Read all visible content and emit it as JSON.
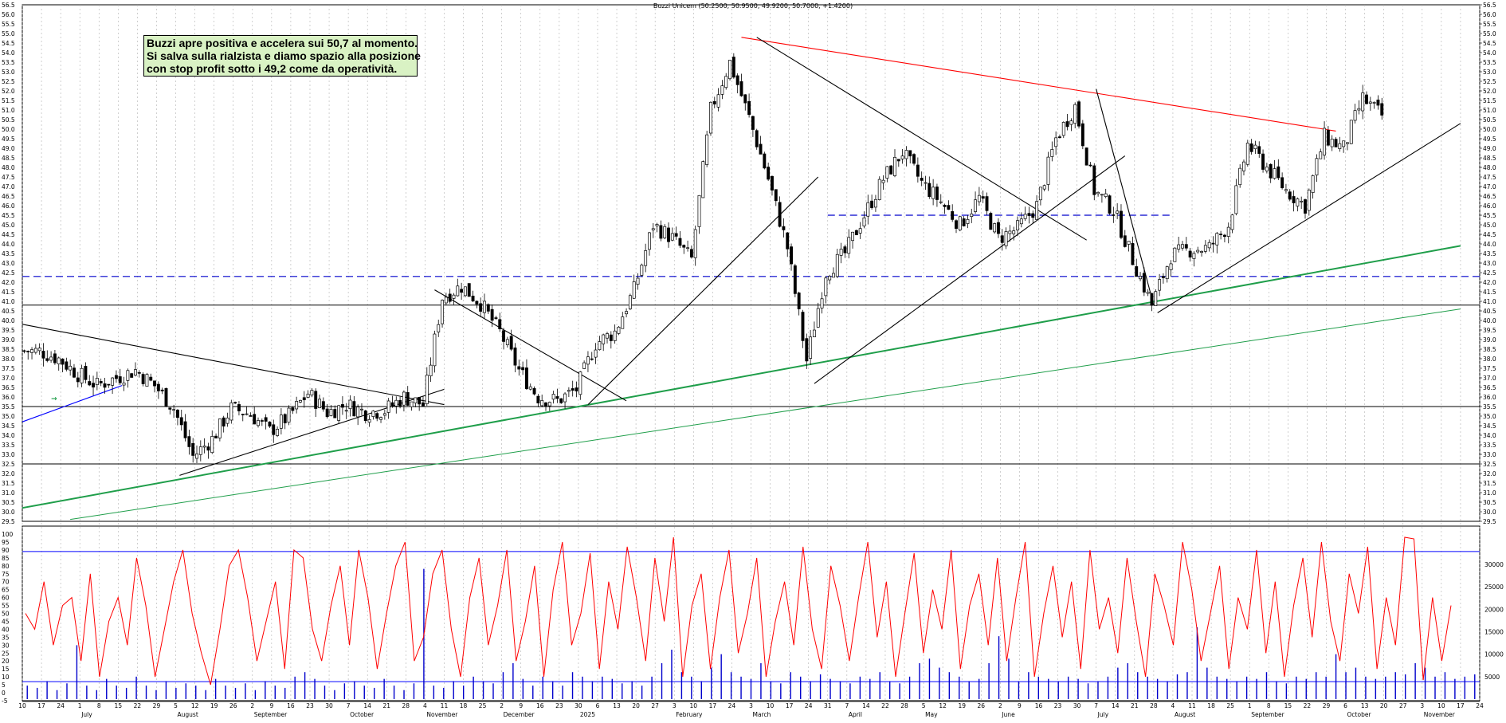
{
  "chart_title": "Buzzi Unicem (50.2500, 50.9500, 49.9200, 50.7000, +1.4200)",
  "annotation": {
    "lines": [
      "Buzzi apre positiva e accelera sui 50,7 al momento.",
      "Si salva sulla rialzista e diamo spazio alla posizione",
      "con stop profit sotto i 49,2 come da operatività."
    ]
  },
  "colors": {
    "candles": "#000000",
    "resistance": "#ff0000",
    "support_green": "#1f9e4a",
    "dashed_level": "#0000cc",
    "oscillator": "#ff0000",
    "volume": "#0000cc",
    "guide_blue": "#0000ff",
    "grid": "#b0b0b0"
  },
  "chart_data": [
    {
      "type": "candlestick",
      "title": "Buzzi Unicem (50.2500, 50.9500, 49.9200, 50.7000, +1.4200)",
      "ylim": [
        29.5,
        56.5
      ],
      "y_ticks": [
        "56.5",
        "56.0",
        "55.5",
        "55.0",
        "54.5",
        "54.0",
        "53.5",
        "53.0",
        "52.5",
        "52.0",
        "51.5",
        "51.0",
        "50.5",
        "50.0",
        "49.5",
        "49.0",
        "48.5",
        "48.0",
        "47.5",
        "47.0",
        "46.5",
        "46.0",
        "45.5",
        "45.0",
        "44.5",
        "44.0",
        "43.5",
        "43.0",
        "42.5",
        "42.0",
        "41.5",
        "41.0",
        "40.5",
        "40.0",
        "39.5",
        "39.0",
        "38.5",
        "38.0",
        "37.5",
        "37.0",
        "36.5",
        "36.0",
        "35.5",
        "35.0",
        "34.5",
        "34.0",
        "33.5",
        "33.0",
        "32.5",
        "32.0",
        "31.5",
        "31.0",
        "30.5",
        "30.0",
        "29.5"
      ],
      "x_day_labels": [
        "10",
        "17",
        "24",
        "1",
        "8",
        "15",
        "22",
        "29",
        "5",
        "12",
        "19",
        "26",
        "2",
        "9",
        "16",
        "23",
        "30",
        "7",
        "14",
        "21",
        "28",
        "4",
        "11",
        "18",
        "25",
        "2",
        "9",
        "16",
        "23",
        "30",
        "6",
        "13",
        "20",
        "27",
        "3",
        "10",
        "17",
        "24",
        "3",
        "10",
        "17",
        "24",
        "31",
        "7",
        "14",
        "22",
        "28",
        "5",
        "12",
        "19",
        "26",
        "2",
        "9",
        "16",
        "23",
        "30",
        "7",
        "14",
        "21",
        "28",
        "4",
        "11",
        "18",
        "25",
        "1",
        "8",
        "15",
        "22",
        "29",
        "6",
        "13",
        "20",
        "27",
        "3",
        "10",
        "17",
        "24"
      ],
      "x_month_labels": [
        {
          "label": "July",
          "week": 3
        },
        {
          "label": "August",
          "week": 8
        },
        {
          "label": "September",
          "week": 12
        },
        {
          "label": "October",
          "week": 17
        },
        {
          "label": "November",
          "week": 21
        },
        {
          "label": "December",
          "week": 25
        },
        {
          "label": "2025",
          "week": 29
        },
        {
          "label": "February",
          "week": 34
        },
        {
          "label": "March",
          "week": 38
        },
        {
          "label": "April",
          "week": 43
        },
        {
          "label": "May",
          "week": 47
        },
        {
          "label": "June",
          "week": 51
        },
        {
          "label": "July",
          "week": 56
        },
        {
          "label": "August",
          "week": 60
        },
        {
          "label": "September",
          "week": 64
        },
        {
          "label": "October",
          "week": 69
        },
        {
          "label": "November",
          "week": 73
        }
      ],
      "weekly_closes": [
        38.4,
        38.0,
        37.2,
        36.6,
        37.0,
        37.4,
        36.6,
        35.4,
        32.9,
        33.8,
        35.4,
        35.1,
        34.2,
        35.0,
        36.2,
        35.2,
        35.6,
        35.2,
        35.3,
        36.0,
        35.6,
        41.2,
        41.8,
        40.9,
        39.4,
        37.4,
        36.0,
        35.8,
        36.4,
        38.8,
        39.4,
        41.6,
        45.0,
        44.3,
        43.2,
        51.0,
        53.5,
        50.6,
        47.4,
        43.8,
        37.9,
        42.5,
        43.5,
        45.5,
        47.4,
        48.8,
        47.2,
        46.2,
        45.0,
        46.4,
        44.3,
        44.8,
        46.0,
        49.5,
        51.2,
        46.8,
        45.8,
        43.2,
        40.8,
        43.4,
        43.7,
        43.8,
        45.0,
        49.2,
        48.0,
        46.8,
        46.0,
        49.6,
        49.0,
        51.6,
        50.7
      ],
      "horizontal_levels": [
        {
          "value": 42.3,
          "style": "dashed",
          "color": "#0000cc"
        },
        {
          "value": 45.5,
          "style": "dashed",
          "color": "#0000cc",
          "from_week": 42,
          "to_week": 60
        },
        {
          "value": 40.8,
          "style": "solid",
          "color": "#000000"
        },
        {
          "value": 35.5,
          "style": "solid",
          "color": "#000000"
        },
        {
          "value": 32.5,
          "style": "solid",
          "color": "#000000"
        },
        {
          "value": 29.5,
          "style": "solid",
          "color": "#000000"
        }
      ],
      "trend_lines": [
        {
          "color": "#ff0000",
          "from": [
            37.5,
            54.8
          ],
          "to": [
            68.5,
            49.9
          ]
        },
        {
          "color": "#1f9e4a",
          "from": [
            0,
            30.2
          ],
          "to": [
            75,
            43.9
          ],
          "width": 2
        },
        {
          "color": "#1f9e4a",
          "from": [
            2.5,
            29.6
          ],
          "to": [
            75,
            40.6
          ],
          "width": 1
        },
        {
          "color": "#000000",
          "from": [
            0,
            39.8
          ],
          "to": [
            22,
            35.6
          ]
        },
        {
          "color": "#000000",
          "from": [
            8.2,
            31.9
          ],
          "to": [
            22,
            36.4
          ]
        },
        {
          "color": "#000000",
          "from": [
            21.5,
            41.6
          ],
          "to": [
            31.5,
            35.8
          ]
        },
        {
          "color": "#000000",
          "from": [
            29.5,
            35.6
          ],
          "to": [
            41.5,
            47.5
          ]
        },
        {
          "color": "#000000",
          "from": [
            38.3,
            54.8
          ],
          "to": [
            55.5,
            44.2
          ]
        },
        {
          "color": "#000000",
          "from": [
            41.3,
            36.7
          ],
          "to": [
            57.5,
            48.6
          ]
        },
        {
          "color": "#000000",
          "from": [
            56.0,
            52.1
          ],
          "to": [
            59.0,
            40.8
          ]
        },
        {
          "color": "#000000",
          "from": [
            59.2,
            40.4
          ],
          "to": [
            75,
            50.3
          ]
        },
        {
          "color": "#0000ff",
          "from": [
            0,
            34.7
          ],
          "to": [
            5.2,
            36.6
          ]
        }
      ]
    },
    {
      "type": "line",
      "name_hidden": true,
      "ylim": [
        -5,
        100
      ],
      "y_ticks_left": [
        "100",
        "95",
        "90",
        "85",
        "80",
        "75",
        "70",
        "65",
        "60",
        "55",
        "50",
        "45",
        "40",
        "35",
        "30",
        "25",
        "20",
        "15",
        "10",
        "5",
        "0",
        "-5"
      ],
      "reference_levels": [
        89,
        7
      ],
      "values": [
        50,
        40,
        70,
        30,
        55,
        60,
        20,
        75,
        10,
        45,
        60,
        30,
        85,
        55,
        10,
        40,
        70,
        90,
        50,
        25,
        5,
        40,
        80,
        90,
        60,
        20,
        45,
        70,
        15,
        90,
        85,
        40,
        20,
        55,
        80,
        30,
        90,
        60,
        15,
        50,
        80,
        95,
        20,
        35,
        75,
        90,
        40,
        10,
        60,
        85,
        30,
        55,
        90,
        20,
        45,
        80,
        10,
        65,
        95,
        30,
        50,
        88,
        15,
        70,
        40,
        92,
        60,
        20,
        85,
        45,
        98,
        10,
        55,
        75,
        15,
        60,
        90,
        25,
        50,
        85,
        10,
        45,
        70,
        30,
        92,
        40,
        15,
        80,
        55,
        20,
        60,
        95,
        35,
        70,
        10,
        50,
        88,
        25,
        65,
        40,
        90,
        15,
        55,
        75,
        30,
        85,
        20,
        60,
        95,
        10,
        50,
        80,
        35,
        70,
        15,
        90,
        40,
        60,
        25,
        85,
        45,
        10,
        75,
        55,
        30,
        95,
        65,
        20,
        50,
        80,
        15,
        60,
        40,
        90,
        25,
        70,
        10,
        55,
        85,
        35,
        95,
        45,
        20,
        75,
        50,
        92,
        15,
        60,
        30,
        98,
        97,
        8,
        60,
        20,
        55
      ]
    },
    {
      "type": "bar",
      "name_hidden": true,
      "ylim": [
        0,
        30000
      ],
      "y_ticks_right": [
        "30000",
        "25000",
        "20000",
        "15000",
        "10000",
        "5000"
      ],
      "values": [
        3000,
        2500,
        4000,
        2000,
        3500,
        12000,
        3000,
        2000,
        4500,
        3000,
        2500,
        5000,
        3000,
        2000,
        4000,
        2500,
        3500,
        3000,
        2000,
        4500,
        3000,
        2500,
        3500,
        2000,
        4000,
        3000,
        2500,
        5000,
        6000,
        4500,
        3000,
        2000,
        3500,
        4000,
        3000,
        2500,
        4500,
        3000,
        2000,
        3500,
        29000,
        3000,
        2500,
        4000,
        3000,
        5000,
        4000,
        3500,
        6000,
        8000,
        4500,
        3000,
        5000,
        4000,
        3000,
        6000,
        5000,
        4000,
        5000,
        4500,
        3500,
        4000,
        3000,
        5000,
        8000,
        11000,
        6000,
        5000,
        4000,
        7000,
        10000,
        6000,
        5000,
        4500,
        8000,
        4000,
        3500,
        6000,
        5000,
        4000,
        5500,
        4500,
        4000,
        3500,
        5000,
        4500,
        6000,
        4000,
        3500,
        5000,
        8000,
        9000,
        7000,
        6000,
        5000,
        4000,
        4500,
        8000,
        14000,
        9000,
        4000,
        6000,
        5000,
        4500,
        4000,
        5000,
        4500,
        3500,
        4000,
        5000,
        7000,
        8000,
        6000,
        5000,
        4500,
        4000,
        5500,
        6000,
        16000,
        7000,
        5000,
        4500,
        4000,
        5000,
        4500,
        6000,
        4000,
        3500,
        5000,
        4500,
        6000,
        5000,
        10000,
        6000,
        7000,
        5000,
        4500,
        5000,
        6000,
        5500,
        8000,
        7000,
        5000,
        6000,
        4500,
        5000,
        5500
      ]
    }
  ]
}
